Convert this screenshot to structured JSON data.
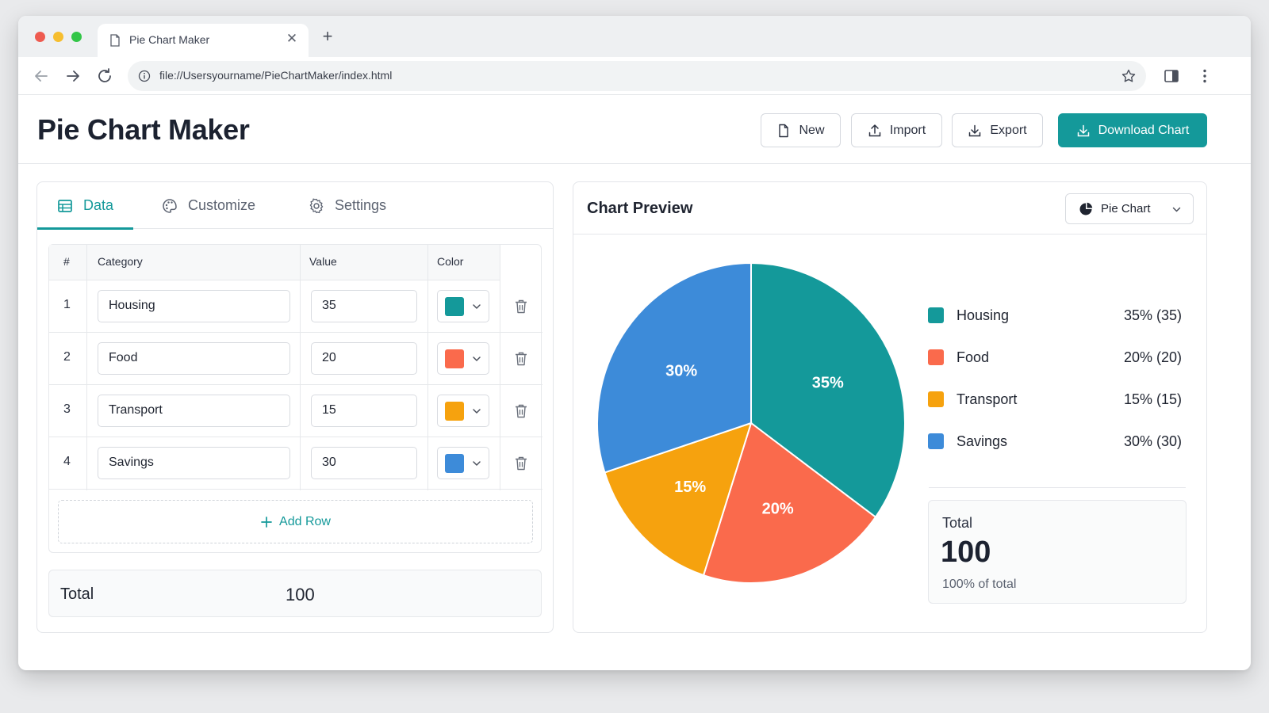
{
  "browser": {
    "tab_title": "Pie Chart Maker",
    "url": "file://Usersyourname/PieChartMaker/index.html"
  },
  "header": {
    "title": "Pie Chart Maker",
    "new_label": "New",
    "import_label": "Import",
    "export_label": "Export",
    "download_label": "Download Chart",
    "accent": "#14999a"
  },
  "tabs": {
    "data": "Data",
    "customize": "Customize",
    "settings": "Settings"
  },
  "table": {
    "headers": {
      "num": "#",
      "category": "Category",
      "value": "Value",
      "color": "Color"
    },
    "rows": [
      {
        "num": "1",
        "category": "Housing",
        "value": "35",
        "color": "#14999a"
      },
      {
        "num": "2",
        "category": "Food",
        "value": "20",
        "color": "#fa6a4c"
      },
      {
        "num": "3",
        "category": "Transport",
        "value": "15",
        "color": "#f6a20e"
      },
      {
        "num": "4",
        "category": "Savings",
        "value": "30",
        "color": "#3d8bd9"
      }
    ],
    "add_row_label": "Add Row",
    "total_label": "Total",
    "total_value": "100"
  },
  "preview": {
    "title": "Chart Preview",
    "chart_type_label": "Pie Chart",
    "legend": [
      {
        "name": "Housing",
        "display": "35% (35)"
      },
      {
        "name": "Food",
        "display": "20% (20)"
      },
      {
        "name": "Transport",
        "display": "15% (15)"
      },
      {
        "name": "Savings",
        "display": "30% (30)"
      }
    ],
    "total_label": "Total",
    "total_value": "100",
    "total_sub": "100% of total"
  },
  "chart_data": {
    "type": "pie",
    "categories": [
      "Housing",
      "Food",
      "Transport",
      "Savings"
    ],
    "values": [
      35,
      20,
      15,
      30
    ],
    "labels": [
      "35%",
      "20%",
      "15%",
      "30%"
    ],
    "colors": [
      "#14999a",
      "#fa6a4c",
      "#f6a20e",
      "#3d8bd9"
    ],
    "legend_position": "right"
  }
}
